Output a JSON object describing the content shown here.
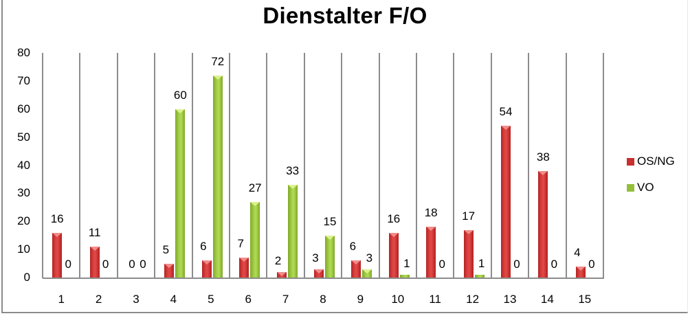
{
  "chart_data": {
    "type": "bar",
    "title": "Dienstalter F/O",
    "xlabel": "",
    "ylabel": "",
    "ylim": [
      0,
      80
    ],
    "yticks": [
      0,
      10,
      20,
      30,
      40,
      50,
      60,
      70,
      80
    ],
    "categories": [
      "1",
      "2",
      "3",
      "4",
      "5",
      "6",
      "7",
      "8",
      "9",
      "10",
      "11",
      "12",
      "13",
      "14",
      "15"
    ],
    "series": [
      {
        "name": "OS/NG",
        "color": "#c7302f",
        "values": [
          16,
          11,
          0,
          5,
          6,
          7,
          2,
          3,
          6,
          16,
          18,
          17,
          54,
          38,
          4
        ]
      },
      {
        "name": "VO",
        "color": "#93bf3a",
        "values": [
          0,
          0,
          0,
          60,
          72,
          27,
          33,
          15,
          3,
          1,
          0,
          1,
          0,
          0,
          0
        ]
      }
    ],
    "grid": "vertical category separators",
    "legend_position": "right",
    "data_labels": true
  }
}
